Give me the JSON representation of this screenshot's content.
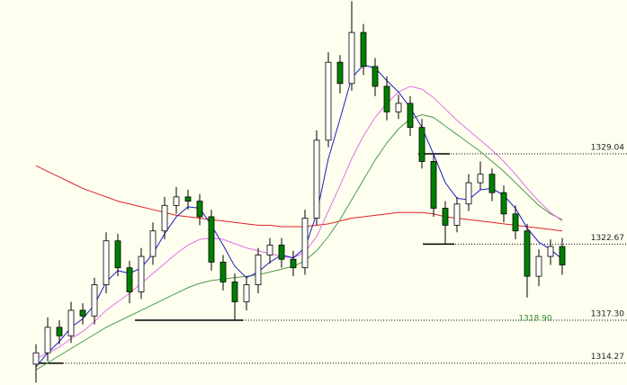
{
  "chart_data": {
    "type": "candlestick",
    "ylim": [
      1312.73,
      1339.89
    ],
    "up_color": "#ffffff",
    "down_color": "#008000",
    "open": [
      1314.2,
      1315.0,
      1316.8,
      1316.2,
      1318.0,
      1317.6,
      1319.8,
      1322.9,
      1321.0,
      1319.3,
      1321.8,
      1323.6,
      1325.4,
      1326.0,
      1325.7,
      1324.6,
      1321.4,
      1320.0,
      1318.6,
      1319.8,
      1321.9,
      1322.6,
      1321.6,
      1321.0,
      1324.5,
      1330.0,
      1335.5,
      1334.0,
      1337.6,
      1335.2,
      1333.8,
      1332.0,
      1332.6,
      1330.9,
      1328.5,
      1325.2,
      1324.0,
      1325.5,
      1327.0,
      1327.6,
      1326.3,
      1324.8,
      1323.6,
      1320.4,
      1321.8,
      1322.5
    ],
    "high": [
      1315.6,
      1317.5,
      1317.3,
      1318.6,
      1318.5,
      1320.3,
      1323.5,
      1323.4,
      1321.5,
      1322.4,
      1324.2,
      1326.0,
      1326.7,
      1326.5,
      1326.2,
      1325.1,
      1321.9,
      1320.6,
      1320.4,
      1322.4,
      1323.1,
      1323.1,
      1322.2,
      1325.1,
      1330.7,
      1336.2,
      1336.0,
      1339.8,
      1338.2,
      1335.8,
      1334.5,
      1333.2,
      1333.1,
      1331.5,
      1329.0,
      1325.7,
      1326.0,
      1327.6,
      1328.5,
      1328.0,
      1326.8,
      1325.4,
      1324.1,
      1322.3,
      1323.0,
      1323.1
    ],
    "low": [
      1312.9,
      1314.4,
      1315.6,
      1315.7,
      1317.0,
      1317.0,
      1319.2,
      1320.4,
      1318.5,
      1318.8,
      1321.2,
      1323.0,
      1324.8,
      1325.1,
      1324.0,
      1320.8,
      1319.4,
      1317.3,
      1318.0,
      1319.2,
      1321.3,
      1321.0,
      1320.4,
      1320.5,
      1324.0,
      1329.5,
      1333.3,
      1333.5,
      1334.6,
      1333.1,
      1331.4,
      1331.5,
      1330.3,
      1328.0,
      1324.6,
      1322.67,
      1323.5,
      1325.0,
      1326.5,
      1325.7,
      1324.2,
      1323.0,
      1318.9,
      1319.7,
      1321.2,
      1320.5
    ],
    "close": [
      1315.0,
      1316.8,
      1316.2,
      1318.0,
      1317.6,
      1319.8,
      1322.9,
      1321.0,
      1319.3,
      1321.8,
      1323.6,
      1325.4,
      1326.0,
      1325.7,
      1324.6,
      1321.4,
      1320.0,
      1318.6,
      1319.8,
      1321.9,
      1322.6,
      1321.6,
      1321.0,
      1324.5,
      1330.0,
      1335.5,
      1334.0,
      1337.6,
      1335.2,
      1333.8,
      1332.0,
      1332.6,
      1330.9,
      1328.5,
      1325.2,
      1324.0,
      1325.5,
      1327.0,
      1327.6,
      1326.3,
      1324.8,
      1323.6,
      1320.4,
      1321.8,
      1322.5,
      1321.2
    ],
    "series": [
      {
        "color": "#dd2222",
        "values": [
          1328.2,
          1327.8,
          1327.4,
          1327.0,
          1326.6,
          1326.3,
          1326.0,
          1325.7,
          1325.5,
          1325.3,
          1325.1,
          1324.9,
          1324.7,
          1324.6,
          1324.5,
          1324.4,
          1324.3,
          1324.2,
          1324.1,
          1324.0,
          1324.0,
          1323.9,
          1323.9,
          1323.9,
          1324.0,
          1324.1,
          1324.3,
          1324.5,
          1324.6,
          1324.7,
          1324.8,
          1324.9,
          1324.9,
          1324.9,
          1324.8,
          1324.6,
          1324.5,
          1324.4,
          1324.3,
          1324.2,
          1324.1,
          1324.0,
          1323.9,
          1323.8,
          1323.7,
          1323.6
        ]
      },
      {
        "color": "#4a9a4a",
        "values": [
          1313.8,
          1314.3,
          1314.8,
          1315.3,
          1315.8,
          1316.3,
          1316.8,
          1317.2,
          1317.6,
          1318.0,
          1318.4,
          1318.8,
          1319.2,
          1319.6,
          1319.9,
          1320.1,
          1320.2,
          1320.3,
          1320.4,
          1320.5,
          1320.7,
          1320.9,
          1321.1,
          1321.5,
          1322.2,
          1323.2,
          1324.4,
          1325.8,
          1327.2,
          1328.6,
          1329.8,
          1330.8,
          1331.5,
          1331.8,
          1331.6,
          1331.0,
          1330.4,
          1329.8,
          1329.2,
          1328.5,
          1327.8,
          1327.0,
          1326.2,
          1325.4,
          1324.8,
          1324.4
        ]
      },
      {
        "color": "#e070e8",
        "values": [
          1314.6,
          1315.0,
          1315.4,
          1316.0,
          1316.5,
          1317.2,
          1318.0,
          1318.6,
          1319.2,
          1319.9,
          1320.6,
          1321.3,
          1322.0,
          1322.6,
          1323.0,
          1323.1,
          1323.0,
          1322.7,
          1322.4,
          1322.2,
          1322.0,
          1321.8,
          1321.7,
          1322.1,
          1323.2,
          1325.0,
          1326.8,
          1328.7,
          1330.3,
          1331.6,
          1332.6,
          1333.4,
          1333.8,
          1333.6,
          1333.0,
          1332.2,
          1331.4,
          1330.7,
          1330.0,
          1329.3,
          1328.5,
          1327.6,
          1326.6,
          1325.7,
          1324.9,
          1324.3
        ]
      },
      {
        "color": "#1a1acc",
        "values": [
          1314.0,
          1315.0,
          1315.8,
          1316.8,
          1317.4,
          1318.4,
          1320.0,
          1320.8,
          1320.6,
          1321.0,
          1322.0,
          1323.4,
          1324.6,
          1325.3,
          1325.2,
          1324.0,
          1322.6,
          1321.1,
          1320.3,
          1320.7,
          1321.4,
          1321.9,
          1321.7,
          1322.4,
          1324.8,
          1328.7,
          1331.5,
          1334.4,
          1335.3,
          1335.1,
          1334.2,
          1333.4,
          1332.3,
          1330.9,
          1329.0,
          1327.0,
          1325.9,
          1325.8,
          1326.5,
          1326.6,
          1326.1,
          1325.2,
          1323.8,
          1322.8,
          1322.3,
          1321.6
        ]
      }
    ],
    "levels": [
      {
        "value": 1329.04,
        "label": "1329.04"
      },
      {
        "value": 1322.67,
        "label": "1322.67"
      },
      {
        "value": 1317.3,
        "label": "1317.30"
      },
      {
        "value": 1314.27,
        "label": "1314.27"
      }
    ],
    "annotations": [
      {
        "value": 1318.9,
        "label": "1318.90"
      }
    ]
  }
}
